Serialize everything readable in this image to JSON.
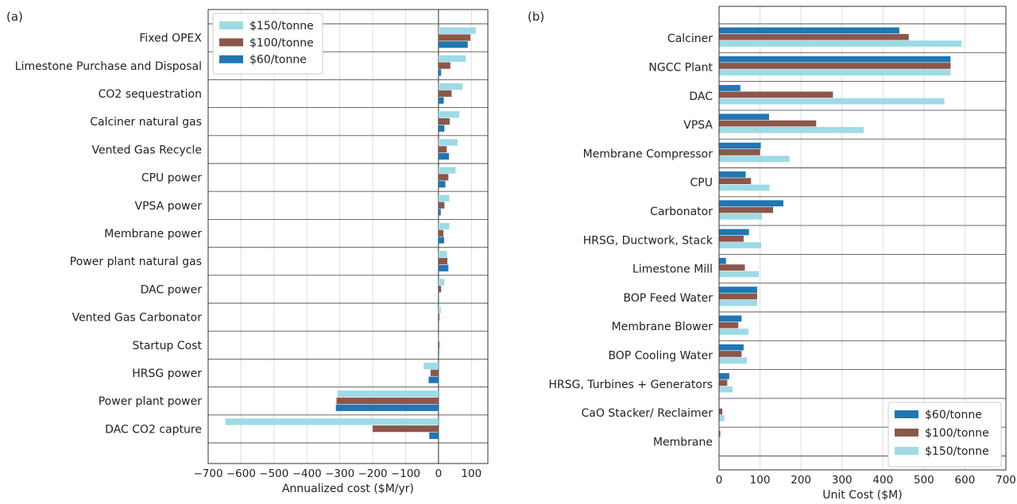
{
  "panel_labels": [
    "(a)",
    "(b)"
  ],
  "chart_data": [
    {
      "type": "bar",
      "orientation": "horizontal",
      "panel": "(a)",
      "categories": [
        "Fixed OPEX",
        "Limestone Purchase and Disposal",
        "CO2 sequestration",
        "Calciner natural gas",
        "Vented Gas Recycle",
        "CPU power",
        "VPSA power",
        "Membrane power",
        "Power plant natural gas",
        "DAC power",
        "Vented Gas Carbonator",
        "Startup Cost",
        "HRSG power",
        "Power plant power",
        "DAC CO2 capture"
      ],
      "series": [
        {
          "name": "$150/tonne",
          "color": "#9edae5",
          "values": [
            113,
            83,
            73,
            63,
            58,
            52,
            33,
            33,
            26,
            18,
            7,
            3,
            -45,
            -307,
            -648
          ]
        },
        {
          "name": "$100/tonne",
          "color": "#8c564b",
          "values": [
            97,
            36,
            40,
            34,
            25,
            30,
            18,
            15,
            27,
            8,
            3,
            3,
            -24,
            -310,
            -200
          ]
        },
        {
          "name": "$60/tonne",
          "color": "#1f77b4",
          "values": [
            89,
            8,
            16,
            18,
            32,
            21,
            7,
            17,
            30,
            0,
            0,
            2,
            -30,
            -312,
            -28
          ]
        }
      ],
      "xlabel": "Annualized cost ($M/yr)",
      "xlim": [
        -700,
        150
      ],
      "xticks": [
        "−700",
        "−600",
        "−500",
        "−400",
        "−300",
        "−200",
        "−100",
        "0",
        "100"
      ],
      "legend": {
        "placement": "top-left",
        "entries": [
          "$150/tonne",
          "$100/tonne",
          "$60/tonne"
        ]
      },
      "grid": true
    },
    {
      "type": "bar",
      "orientation": "horizontal",
      "panel": "(b)",
      "categories": [
        "Calciner",
        "NGCC Plant",
        "DAC",
        "VPSA",
        "Membrane Compressor",
        "CPU",
        "Carbonator",
        "HRSG, Ductwork, Stack",
        "Limestone Mill",
        "BOP Feed Water",
        "Membrane Blower",
        "BOP Cooling Water",
        "HRSG, Turbines + Generators",
        "CaO Stacker/ Reclaimer",
        "Membrane"
      ],
      "series": [
        {
          "name": "$60/tonne",
          "color": "#1f77b4",
          "values": [
            440,
            565,
            52,
            122,
            102,
            65,
            157,
            73,
            17,
            93,
            55,
            60,
            25,
            0,
            3
          ]
        },
        {
          "name": "$100/tonne",
          "color": "#8c564b",
          "values": [
            463,
            565,
            278,
            237,
            100,
            78,
            132,
            60,
            63,
            93,
            47,
            55,
            20,
            8,
            0
          ]
        },
        {
          "name": "$150/tonne",
          "color": "#9edae5",
          "values": [
            592,
            565,
            550,
            353,
            172,
            123,
            105,
            103,
            97,
            93,
            72,
            68,
            33,
            13,
            0
          ]
        }
      ],
      "xlabel": "Unit Cost ($M)",
      "xlim": [
        0,
        700
      ],
      "xticks": [
        "0",
        "100",
        "200",
        "300",
        "400",
        "500",
        "600",
        "700"
      ],
      "legend": {
        "placement": "bottom-right",
        "entries": [
          "$60/tonne",
          "$100/tonne",
          "$150/tonne"
        ]
      },
      "grid": true
    }
  ]
}
